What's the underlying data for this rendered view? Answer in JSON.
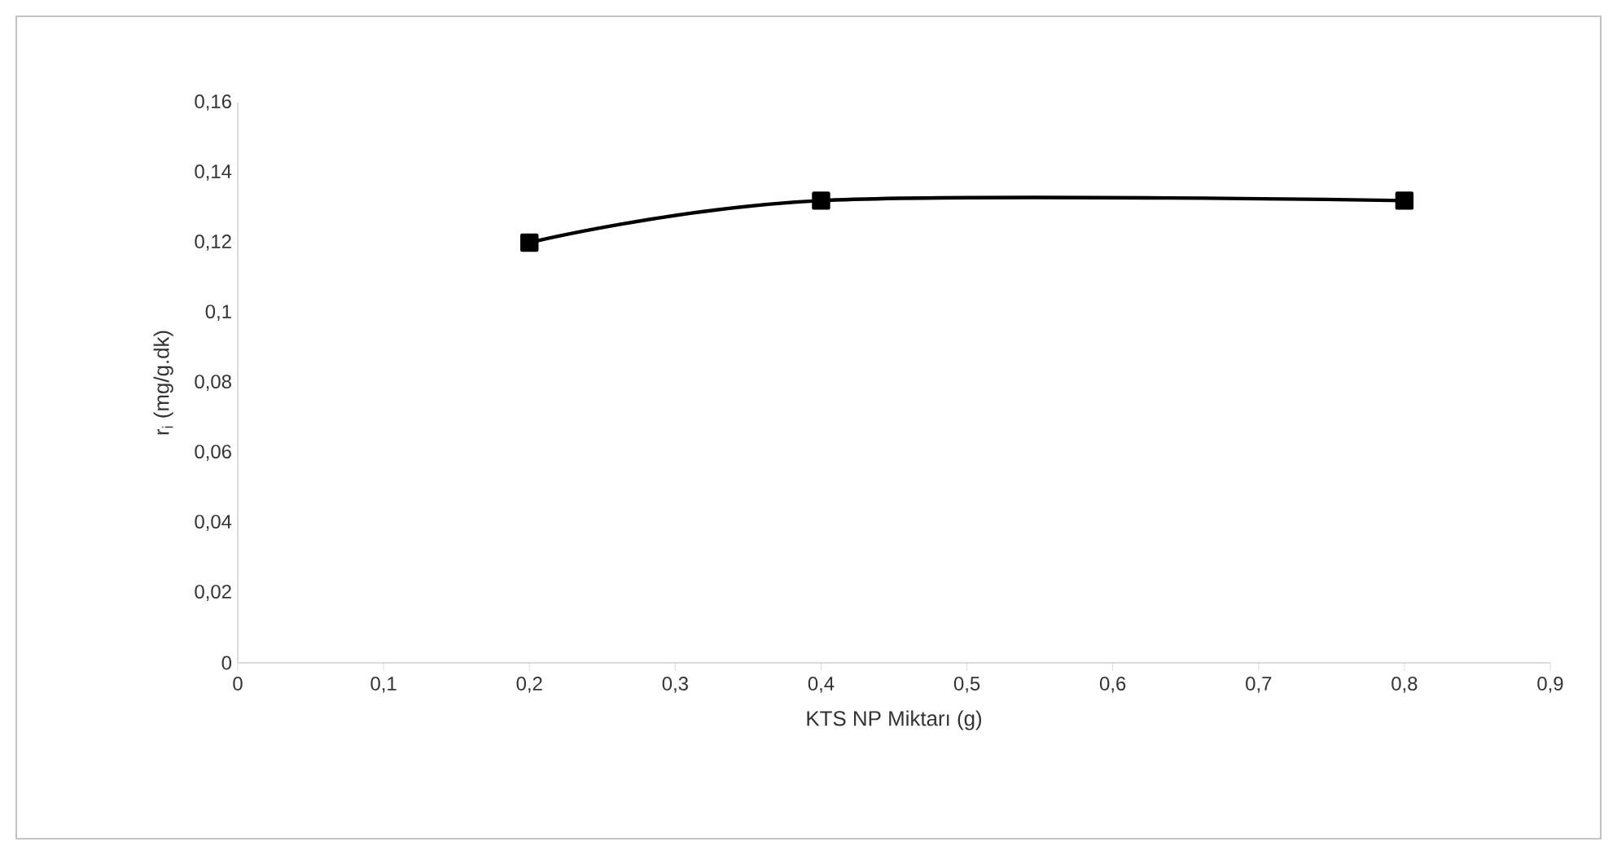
{
  "chart_data": {
    "type": "line",
    "xlabel": "KTS NP Miktarı (g)",
    "ylabel": "r$_{i}$ (mg/g.dk)",
    "x": [
      0.2,
      0.4,
      0.8
    ],
    "series": [
      {
        "color": "#000000",
        "values": [
          0.12,
          0.132,
          0.132
        ]
      }
    ],
    "xlim": [
      0,
      0.9
    ],
    "ylim": [
      0,
      0.16
    ],
    "xticks": [
      0,
      {
        "value": 0.1,
        "label": "0,1"
      },
      {
        "value": 0.2,
        "label": "0,2"
      },
      {
        "value": 0.3,
        "label": "0,3"
      },
      {
        "value": 0.4,
        "label": "0,4"
      },
      {
        "value": 0.5,
        "label": "0,5"
      },
      {
        "value": 0.6,
        "label": "0,6"
      },
      {
        "value": 0.7,
        "label": "0,7"
      },
      {
        "value": 0.8,
        "label": "0,8"
      },
      {
        "value": 0.9,
        "label": "0,9"
      }
    ],
    "yticks": [
      0,
      {
        "value": 0.02,
        "label": "0,02"
      },
      {
        "value": 0.04,
        "label": "0,04"
      },
      {
        "value": 0.06,
        "label": "0,06"
      },
      {
        "value": 0.08,
        "label": "0,08"
      },
      {
        "value": 0.1,
        "label": "0,1"
      },
      {
        "value": 0.12,
        "label": "0,12"
      },
      {
        "value": 0.14,
        "label": "0,14"
      },
      {
        "value": 0.16,
        "label": "0,16"
      }
    ],
    "marker": "square",
    "grid": false,
    "legend": false
  }
}
